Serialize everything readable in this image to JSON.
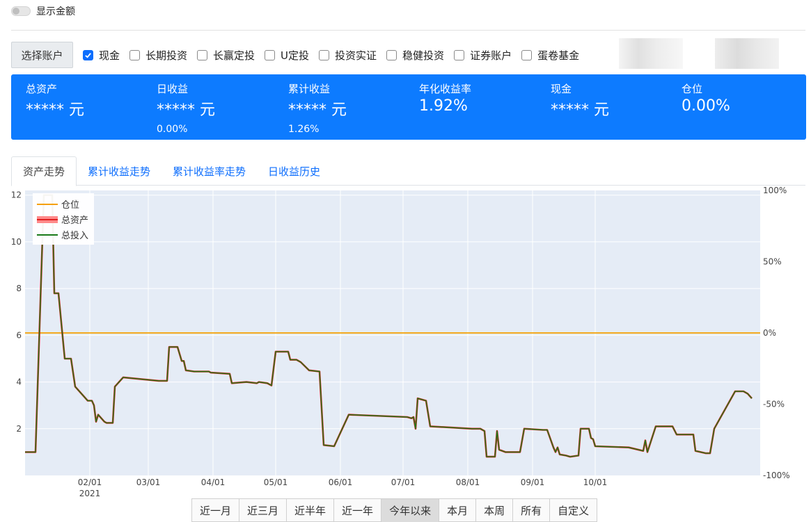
{
  "toggle": {
    "label": "显示金额",
    "on": false
  },
  "account_select": {
    "button_label": "选择账户",
    "accounts": [
      {
        "label": "现金",
        "checked": true
      },
      {
        "label": "长期投资",
        "checked": false
      },
      {
        "label": "长赢定投",
        "checked": false
      },
      {
        "label": "U定投",
        "checked": false
      },
      {
        "label": "投资实证",
        "checked": false
      },
      {
        "label": "稳健投资",
        "checked": false
      },
      {
        "label": "证券账户",
        "checked": false
      },
      {
        "label": "蛋卷基金",
        "checked": false
      }
    ]
  },
  "summary": {
    "bg_color": "#0d7bff",
    "stats": [
      {
        "label": "总资产",
        "value": "***** 元",
        "sub": ""
      },
      {
        "label": "日收益",
        "value": "***** 元",
        "sub": "0.00%"
      },
      {
        "label": "累计收益",
        "value": "***** 元",
        "sub": "1.26%"
      },
      {
        "label": "年化收益率",
        "value": "1.92%",
        "sub": ""
      },
      {
        "label": "现金",
        "value": "***** 元",
        "sub": ""
      },
      {
        "label": "仓位",
        "value": "0.00%",
        "sub": ""
      }
    ]
  },
  "tabs": [
    {
      "label": "资产走势",
      "active": true
    },
    {
      "label": "累计收益走势",
      "active": false
    },
    {
      "label": "累计收益率走势",
      "active": false
    },
    {
      "label": "日收益历史",
      "active": false
    }
  ],
  "chart_data": {
    "type": "line",
    "y_left": {
      "ticks": [
        "2",
        "4",
        "6",
        "8",
        "10",
        "12"
      ],
      "range": [
        0,
        12.2
      ]
    },
    "y_right": {
      "ticks": [
        "100%",
        "50%",
        "0%",
        "-50%",
        "-100%"
      ],
      "range": [
        -100,
        100
      ]
    },
    "x_ticks": [
      "02/01",
      "03/01",
      "04/01",
      "05/01",
      "06/01",
      "07/01",
      "08/01",
      "09/01",
      "10/01"
    ],
    "x_year_label": "2021",
    "grid": true,
    "legend_position": "top-left",
    "series": [
      {
        "name": "仓位",
        "color": "#f5a000",
        "axis": "right",
        "values": [
          [
            0,
            0
          ],
          [
            380,
            0
          ]
        ]
      },
      {
        "name": "总资产",
        "color": "#e02020",
        "axis": "left",
        "values": [
          [
            0,
            1.0
          ],
          [
            5,
            1.0
          ],
          [
            9,
            12
          ],
          [
            13,
            12
          ],
          [
            14,
            7.8
          ],
          [
            16,
            7.8
          ],
          [
            19,
            5.0
          ],
          [
            22,
            5.0
          ],
          [
            24,
            3.8
          ],
          [
            27,
            3.5
          ],
          [
            30,
            3.2
          ],
          [
            32,
            3.2
          ],
          [
            33,
            3.0
          ],
          [
            34,
            2.3
          ],
          [
            35,
            2.6
          ],
          [
            38,
            2.3
          ],
          [
            39,
            2.25
          ],
          [
            42,
            2.25
          ],
          [
            43,
            3.8
          ],
          [
            47,
            4.2
          ],
          [
            64,
            4.05
          ],
          [
            68,
            4.05
          ],
          [
            69,
            5.5
          ],
          [
            73,
            5.5
          ],
          [
            75,
            4.9
          ],
          [
            76,
            4.9
          ],
          [
            77,
            4.5
          ],
          [
            81,
            4.45
          ],
          [
            88,
            4.45
          ],
          [
            89,
            4.4
          ],
          [
            98,
            4.35
          ],
          [
            99,
            3.95
          ],
          [
            106,
            4.0
          ],
          [
            111,
            3.95
          ],
          [
            112,
            4.0
          ],
          [
            116,
            3.95
          ],
          [
            118,
            3.85
          ],
          [
            120,
            5.3
          ],
          [
            126,
            5.3
          ],
          [
            127,
            4.95
          ],
          [
            130,
            4.95
          ],
          [
            132,
            4.85
          ],
          [
            136,
            4.5
          ],
          [
            141,
            4.45
          ],
          [
            143,
            1.3
          ],
          [
            148,
            1.25
          ],
          [
            155,
            2.6
          ],
          [
            183,
            2.5
          ],
          [
            185,
            2.45
          ],
          [
            186,
            2.5
          ],
          [
            187,
            2.0
          ],
          [
            188,
            3.3
          ],
          [
            192,
            3.2
          ],
          [
            194,
            2.1
          ],
          [
            214,
            2.0
          ],
          [
            218,
            2.0
          ],
          [
            220,
            1.9
          ],
          [
            221,
            0.8
          ],
          [
            225,
            0.8
          ],
          [
            226,
            1.9
          ],
          [
            227,
            1.1
          ],
          [
            230,
            1.0
          ],
          [
            237,
            1.0
          ],
          [
            239,
            2.0
          ],
          [
            248,
            1.95
          ],
          [
            250,
            1.95
          ],
          [
            253,
            1.2
          ],
          [
            254,
            1.0
          ],
          [
            255,
            1.2
          ],
          [
            256,
            0.9
          ],
          [
            259,
            0.85
          ],
          [
            261,
            0.8
          ],
          [
            265,
            0.85
          ],
          [
            266,
            2.0
          ],
          [
            270,
            2.0
          ],
          [
            271,
            1.6
          ],
          [
            272,
            1.55
          ],
          [
            273,
            1.25
          ],
          [
            289,
            1.2
          ],
          [
            296,
            1.05
          ],
          [
            297,
            1.5
          ],
          [
            298,
            1.0
          ],
          [
            302,
            2.1
          ],
          [
            310,
            2.1
          ],
          [
            312,
            1.75
          ],
          [
            320,
            1.75
          ],
          [
            321,
            1.05
          ],
          [
            326,
            0.95
          ],
          [
            328,
            0.95
          ],
          [
            330,
            2.0
          ],
          [
            340,
            3.6
          ],
          [
            344,
            3.6
          ],
          [
            346,
            3.5
          ],
          [
            348,
            3.3
          ]
        ]
      },
      {
        "name": "总投入",
        "color": "#1a7a1a",
        "axis": "left",
        "values": [
          [
            0,
            1.0
          ],
          [
            5,
            1.0
          ],
          [
            9,
            12
          ],
          [
            13,
            12
          ],
          [
            14,
            7.8
          ],
          [
            16,
            7.8
          ],
          [
            19,
            5.0
          ],
          [
            22,
            5.0
          ],
          [
            24,
            3.8
          ],
          [
            27,
            3.5
          ],
          [
            30,
            3.2
          ],
          [
            32,
            3.2
          ],
          [
            33,
            3.0
          ],
          [
            34,
            2.3
          ],
          [
            35,
            2.6
          ],
          [
            38,
            2.3
          ],
          [
            39,
            2.25
          ],
          [
            42,
            2.25
          ],
          [
            43,
            3.8
          ],
          [
            47,
            4.2
          ],
          [
            64,
            4.05
          ],
          [
            68,
            4.05
          ],
          [
            69,
            5.5
          ],
          [
            73,
            5.5
          ],
          [
            75,
            4.9
          ],
          [
            76,
            4.9
          ],
          [
            77,
            4.5
          ],
          [
            81,
            4.45
          ],
          [
            88,
            4.45
          ],
          [
            89,
            4.4
          ],
          [
            98,
            4.35
          ],
          [
            99,
            3.95
          ],
          [
            106,
            4.0
          ],
          [
            111,
            3.95
          ],
          [
            112,
            4.0
          ],
          [
            116,
            3.95
          ],
          [
            118,
            3.85
          ],
          [
            120,
            5.3
          ],
          [
            126,
            5.3
          ],
          [
            127,
            4.95
          ],
          [
            130,
            4.95
          ],
          [
            132,
            4.85
          ],
          [
            136,
            4.5
          ],
          [
            141,
            4.45
          ],
          [
            143,
            1.3
          ],
          [
            148,
            1.25
          ],
          [
            155,
            2.6
          ],
          [
            183,
            2.5
          ],
          [
            185,
            2.45
          ],
          [
            186,
            2.5
          ],
          [
            187,
            2.0
          ],
          [
            188,
            3.3
          ],
          [
            192,
            3.2
          ],
          [
            194,
            2.1
          ],
          [
            214,
            2.0
          ],
          [
            218,
            2.0
          ],
          [
            220,
            1.9
          ],
          [
            221,
            0.8
          ],
          [
            225,
            0.8
          ],
          [
            226,
            1.9
          ],
          [
            227,
            1.1
          ],
          [
            230,
            1.0
          ],
          [
            237,
            1.0
          ],
          [
            239,
            2.0
          ],
          [
            248,
            1.95
          ],
          [
            250,
            1.95
          ],
          [
            253,
            1.2
          ],
          [
            254,
            1.0
          ],
          [
            255,
            1.2
          ],
          [
            256,
            0.9
          ],
          [
            259,
            0.85
          ],
          [
            261,
            0.8
          ],
          [
            265,
            0.85
          ],
          [
            266,
            2.0
          ],
          [
            270,
            2.0
          ],
          [
            271,
            1.6
          ],
          [
            272,
            1.55
          ],
          [
            273,
            1.25
          ],
          [
            289,
            1.2
          ],
          [
            296,
            1.05
          ],
          [
            297,
            1.5
          ],
          [
            298,
            1.0
          ],
          [
            302,
            2.1
          ],
          [
            310,
            2.1
          ],
          [
            312,
            1.75
          ],
          [
            320,
            1.75
          ],
          [
            321,
            1.05
          ],
          [
            326,
            0.95
          ],
          [
            328,
            0.95
          ],
          [
            330,
            2.0
          ],
          [
            340,
            3.6
          ],
          [
            344,
            3.6
          ],
          [
            346,
            3.5
          ],
          [
            348,
            3.3
          ]
        ]
      }
    ]
  },
  "range_buttons": [
    {
      "label": "近一月",
      "active": false
    },
    {
      "label": "近三月",
      "active": false
    },
    {
      "label": "近半年",
      "active": false
    },
    {
      "label": "近一年",
      "active": false
    },
    {
      "label": "今年以来",
      "active": true
    },
    {
      "label": "本月",
      "active": false
    },
    {
      "label": "本周",
      "active": false
    },
    {
      "label": "所有",
      "active": false
    },
    {
      "label": "自定义",
      "active": false
    }
  ]
}
